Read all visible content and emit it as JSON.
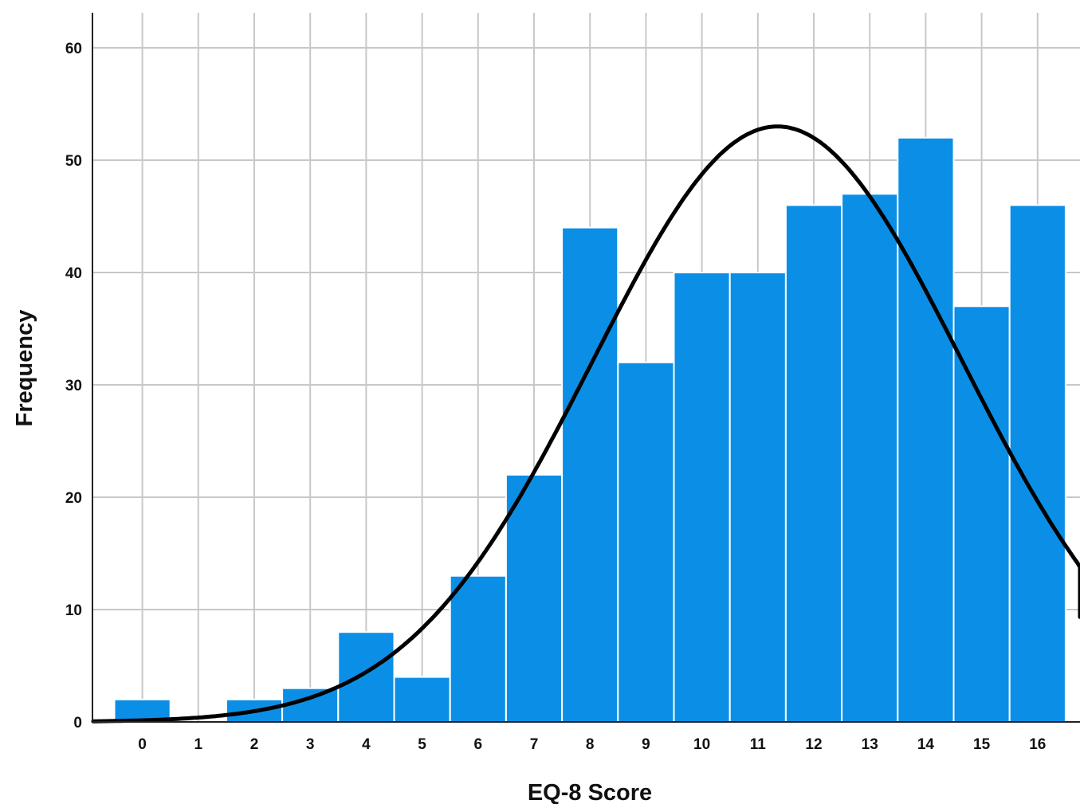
{
  "chart_data": {
    "type": "bar",
    "title": "",
    "xlabel": "EQ-8 Score",
    "ylabel": "Frequency",
    "categories": [
      "0",
      "1",
      "2",
      "3",
      "4",
      "5",
      "6",
      "7",
      "8",
      "9",
      "10",
      "11",
      "12",
      "13",
      "14",
      "15",
      "16"
    ],
    "values": [
      2,
      0,
      2,
      3,
      8,
      4,
      13,
      22,
      44,
      32,
      40,
      40,
      46,
      47,
      52,
      37,
      46
    ],
    "ylim": [
      0,
      63
    ],
    "yticks": [
      "0",
      "10",
      "20",
      "30",
      "40",
      "50",
      "60"
    ],
    "grid": true,
    "bar_color": "#0b8fe6",
    "normal_curve": {
      "mean": 11.35,
      "sd": 3.3,
      "peak": 53
    }
  }
}
